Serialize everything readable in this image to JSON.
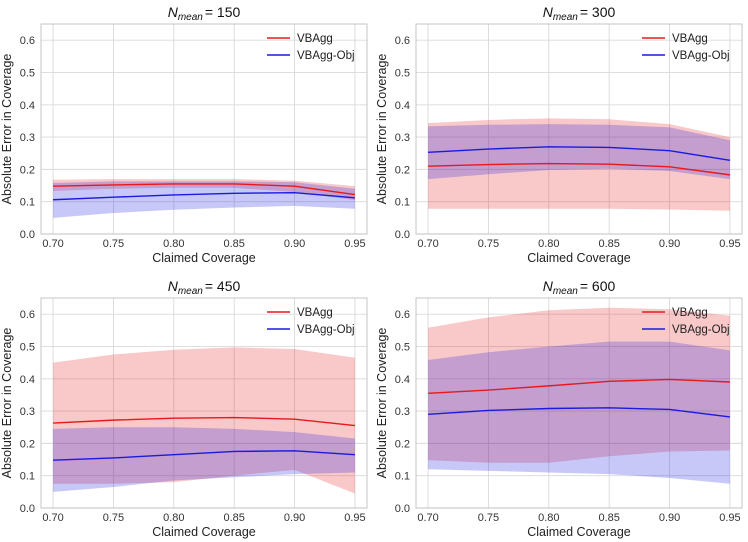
{
  "chart_data": [
    {
      "type": "line",
      "title": {
        "symbol": "N",
        "subscript": "mean",
        "suffix": "=  150"
      },
      "xlabel": "Claimed Coverage",
      "ylabel": "Absolute Error in Coverage",
      "x": [
        0.7,
        0.75,
        0.8,
        0.85,
        0.9,
        0.95
      ],
      "x_ticks": [
        "0.70",
        "0.75",
        "0.80",
        "0.85",
        "0.90",
        "0.95"
      ],
      "y_ticks": [
        "0.0",
        "0.1",
        "0.2",
        "0.3",
        "0.4",
        "0.5",
        "0.6"
      ],
      "xlim": [
        0.69,
        0.96
      ],
      "ylim": [
        0.0,
        0.65
      ],
      "grid": true,
      "legend": "top-right",
      "series": [
        {
          "name": "VBAgg",
          "color": "#e8191c",
          "values": [
            0.148,
            0.152,
            0.155,
            0.155,
            0.148,
            0.122
          ],
          "lower": [
            0.133,
            0.14,
            0.143,
            0.143,
            0.13,
            0.105
          ],
          "upper": [
            0.168,
            0.17,
            0.17,
            0.17,
            0.165,
            0.148
          ]
        },
        {
          "name": "VBAgg-Obj",
          "color": "#1a1ae0",
          "values": [
            0.106,
            0.114,
            0.121,
            0.126,
            0.128,
            0.112
          ],
          "lower": [
            0.05,
            0.065,
            0.075,
            0.082,
            0.087,
            0.078
          ],
          "upper": [
            0.158,
            0.163,
            0.163,
            0.163,
            0.16,
            0.14
          ]
        }
      ]
    },
    {
      "type": "line",
      "title": {
        "symbol": "N",
        "subscript": "mean",
        "suffix": "=  300"
      },
      "xlabel": "Claimed Coverage",
      "ylabel": "Absolute Error in Coverage",
      "x": [
        0.7,
        0.75,
        0.8,
        0.85,
        0.9,
        0.95
      ],
      "x_ticks": [
        "0.70",
        "0.75",
        "0.80",
        "0.85",
        "0.90",
        "0.95"
      ],
      "y_ticks": [
        "0.0",
        "0.1",
        "0.2",
        "0.3",
        "0.4",
        "0.5",
        "0.6"
      ],
      "xlim": [
        0.69,
        0.96
      ],
      "ylim": [
        0.0,
        0.65
      ],
      "grid": true,
      "legend": "top-right",
      "series": [
        {
          "name": "VBAgg",
          "color": "#e8191c",
          "values": [
            0.21,
            0.215,
            0.218,
            0.216,
            0.208,
            0.183
          ],
          "lower": [
            0.078,
            0.078,
            0.078,
            0.078,
            0.076,
            0.072
          ],
          "upper": [
            0.343,
            0.353,
            0.358,
            0.355,
            0.34,
            0.3
          ]
        },
        {
          "name": "VBAgg-Obj",
          "color": "#1a1ae0",
          "values": [
            0.253,
            0.263,
            0.27,
            0.268,
            0.258,
            0.228
          ],
          "lower": [
            0.17,
            0.185,
            0.198,
            0.202,
            0.195,
            0.17
          ],
          "upper": [
            0.333,
            0.338,
            0.34,
            0.338,
            0.33,
            0.29
          ]
        }
      ]
    },
    {
      "type": "line",
      "title": {
        "symbol": "N",
        "subscript": "mean",
        "suffix": "=  450"
      },
      "xlabel": "Claimed Coverage",
      "ylabel": "Absolute Error in Coverage",
      "x": [
        0.7,
        0.75,
        0.8,
        0.85,
        0.9,
        0.95
      ],
      "x_ticks": [
        "0.70",
        "0.75",
        "0.80",
        "0.85",
        "0.90",
        "0.95"
      ],
      "y_ticks": [
        "0.0",
        "0.1",
        "0.2",
        "0.3",
        "0.4",
        "0.5",
        "0.6"
      ],
      "xlim": [
        0.69,
        0.96
      ],
      "ylim": [
        0.0,
        0.65
      ],
      "grid": true,
      "legend": "top-right",
      "series": [
        {
          "name": "VBAgg",
          "color": "#e8191c",
          "values": [
            0.263,
            0.272,
            0.278,
            0.28,
            0.275,
            0.255
          ],
          "lower": [
            0.075,
            0.075,
            0.08,
            0.1,
            0.118,
            0.045
          ],
          "upper": [
            0.45,
            0.475,
            0.49,
            0.497,
            0.492,
            0.465
          ]
        },
        {
          "name": "VBAgg-Obj",
          "color": "#1a1ae0",
          "values": [
            0.148,
            0.155,
            0.165,
            0.175,
            0.177,
            0.165
          ],
          "lower": [
            0.05,
            0.065,
            0.085,
            0.095,
            0.105,
            0.11
          ],
          "upper": [
            0.245,
            0.25,
            0.25,
            0.245,
            0.235,
            0.215
          ]
        }
      ]
    },
    {
      "type": "line",
      "title": {
        "symbol": "N",
        "subscript": "mean",
        "suffix": "=  600"
      },
      "xlabel": "Claimed Coverage",
      "ylabel": "Absolute Error in Coverage",
      "x": [
        0.7,
        0.75,
        0.8,
        0.85,
        0.9,
        0.95
      ],
      "x_ticks": [
        "0.70",
        "0.75",
        "0.80",
        "0.85",
        "0.90",
        "0.95"
      ],
      "y_ticks": [
        "0.0",
        "0.1",
        "0.2",
        "0.3",
        "0.4",
        "0.5",
        "0.6"
      ],
      "xlim": [
        0.69,
        0.96
      ],
      "ylim": [
        0.0,
        0.65
      ],
      "grid": true,
      "legend": "top-right",
      "series": [
        {
          "name": "VBAgg",
          "color": "#e8191c",
          "values": [
            0.355,
            0.365,
            0.378,
            0.392,
            0.398,
            0.39
          ],
          "lower": [
            0.148,
            0.14,
            0.14,
            0.16,
            0.175,
            0.178
          ],
          "upper": [
            0.558,
            0.59,
            0.612,
            0.62,
            0.615,
            0.595
          ]
        },
        {
          "name": "VBAgg-Obj",
          "color": "#1a1ae0",
          "values": [
            0.29,
            0.302,
            0.308,
            0.31,
            0.305,
            0.282
          ],
          "lower": [
            0.12,
            0.115,
            0.11,
            0.105,
            0.093,
            0.075
          ],
          "upper": [
            0.458,
            0.482,
            0.5,
            0.515,
            0.515,
            0.488
          ]
        }
      ]
    }
  ]
}
